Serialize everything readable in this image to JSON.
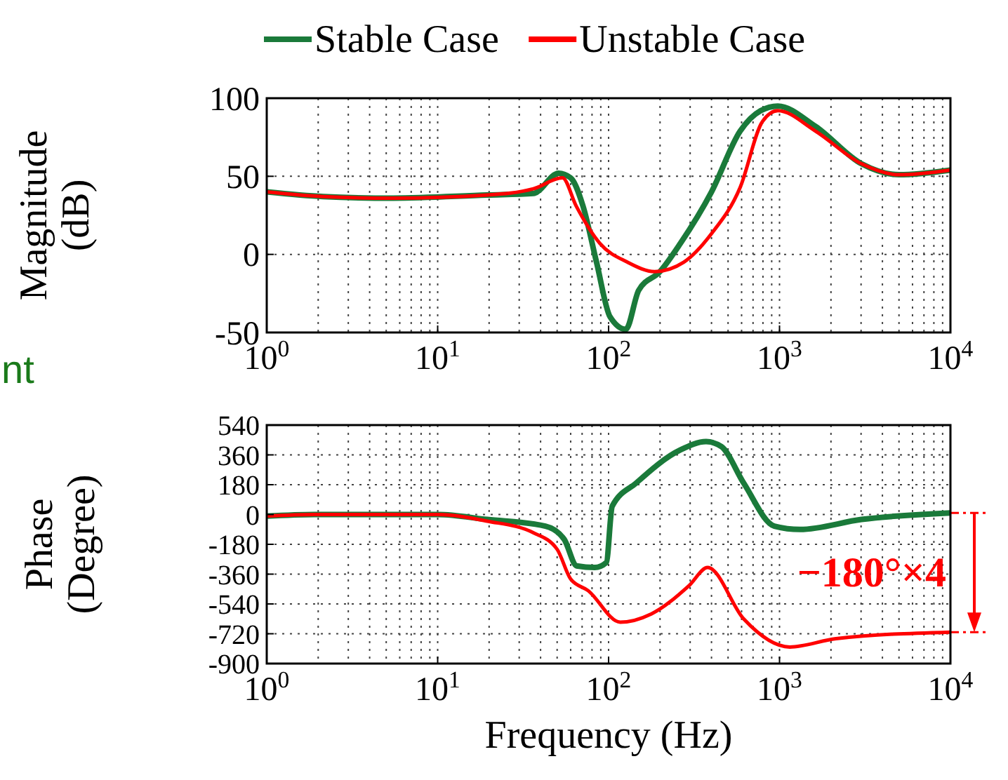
{
  "chart_data": [
    {
      "type": "line",
      "ylabel": "Magnitude (dB)",
      "log": "x",
      "grid": true,
      "legend": "top",
      "xlim": [
        1,
        10000
      ],
      "xticks": [
        {
          "value": 1,
          "label": "10$^{0}$"
        },
        {
          "value": 10,
          "label": "10$^{1}$"
        },
        {
          "value": 100,
          "label": "10$^{2}$"
        },
        {
          "value": 1000,
          "label": "10$^{3}$"
        },
        {
          "value": 10000,
          "label": "10$^{4}$"
        }
      ],
      "ylim": [
        -50,
        100
      ],
      "yticks": [
        -50,
        0,
        50,
        100
      ],
      "annotations": [
        "nt"
      ],
      "series": [
        {
          "name": "Stable Case",
          "color": "#1a7a3a",
          "x": [
            1,
            2.14,
            5.5,
            19.5,
            36.3,
            51,
            60,
            70.8,
            85,
            102,
            126,
            150,
            200,
            263,
            400,
            589,
            776,
            977,
            1622,
            3020,
            5012,
            10000
          ],
          "values": [
            40,
            37,
            36,
            38,
            39,
            52,
            49,
            31,
            -5,
            -40,
            -48,
            -23,
            -11,
            7,
            40,
            79,
            92,
            95,
            82,
            58,
            51,
            54
          ]
        },
        {
          "name": "Unstable Case",
          "color": "#ff0000",
          "x": [
            1,
            2.14,
            5.5,
            19.5,
            36.3,
            53.7,
            64.6,
            89,
            129,
            186,
            275,
            398,
            589,
            794,
            977,
            1622,
            3020,
            5012,
            10000
          ],
          "values": [
            40,
            37,
            36,
            38,
            42,
            49,
            31,
            7,
            -5,
            -11,
            -5,
            13,
            43,
            85,
            92,
            79,
            58,
            51,
            54
          ]
        }
      ]
    },
    {
      "type": "line",
      "xlabel": "Frequency (Hz)",
      "ylabel": "Phase (Degree)",
      "log": "x",
      "grid": true,
      "xlim": [
        1,
        10000
      ],
      "xticks": [
        {
          "value": 1,
          "label": "10$^{0}$"
        },
        {
          "value": 10,
          "label": "10$^{1}$"
        },
        {
          "value": 100,
          "label": "10$^{2}$"
        },
        {
          "value": 1000,
          "label": "10$^{3}$"
        },
        {
          "value": 10000,
          "label": "10$^{4}$"
        }
      ],
      "ylim": [
        -900,
        540
      ],
      "yticks": [
        -900,
        -720,
        -540,
        -360,
        -180,
        0,
        180,
        360,
        540
      ],
      "annotations": [
        "−180°×4"
      ],
      "series": [
        {
          "color": "#1a7a3a",
          "x": [
            1,
            1.9,
            10,
            19.5,
            42.7,
            55,
            65,
            83,
            97,
            105,
            145,
            263,
            372,
            457,
            617,
            933,
            1318,
            3020,
            10000
          ],
          "values": [
            -10,
            0,
            0,
            -30,
            -70,
            -150,
            -310,
            -320,
            -290,
            50,
            190,
            390,
            440,
            410,
            190,
            -70,
            -90,
            -30,
            10
          ]
        },
        {
          "color": "#ff0000",
          "x": [
            1,
            1.9,
            10,
            19.5,
            36.3,
            50,
            60,
            76,
            117,
            178,
            295,
            380,
            617,
            1148,
            2138,
            10000
          ],
          "values": [
            -10,
            0,
            0,
            -40,
            -110,
            -210,
            -390,
            -460,
            -650,
            -600,
            -430,
            -320,
            -630,
            -800,
            -750,
            -710
          ]
        }
      ]
    }
  ]
}
